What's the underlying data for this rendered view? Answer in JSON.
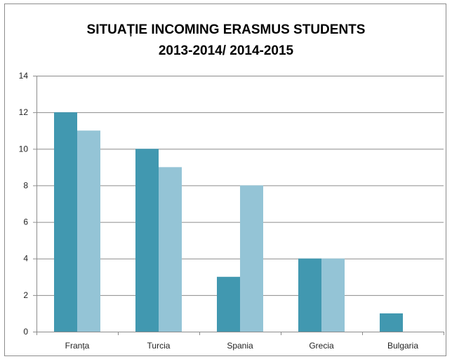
{
  "chart_data": {
    "type": "bar",
    "title_line1": "SITUAȚIE INCOMING ERASMUS STUDENTS",
    "title_line2": "2013-2014/ 2014-2015",
    "categories": [
      "Franța",
      "Turcia",
      "Spania",
      "Grecia",
      "Bulgaria"
    ],
    "series": [
      {
        "values": [
          12,
          10,
          3,
          4,
          1
        ],
        "color": "#4198B0"
      },
      {
        "values": [
          11,
          9,
          8,
          4,
          0
        ],
        "color": "#94C4D6"
      }
    ],
    "ylim": [
      0,
      14
    ],
    "yticks": [
      0,
      2,
      4,
      6,
      8,
      10,
      12,
      14
    ],
    "grid": true,
    "legend": "none"
  }
}
